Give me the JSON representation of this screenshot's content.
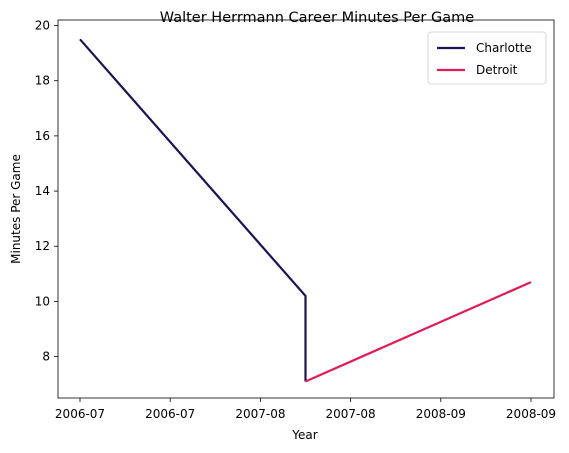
{
  "chart_data": {
    "type": "line",
    "title": "Walter Herrmann Career Minutes Per Game",
    "xlabel": "Year",
    "ylabel": "Minutes Per Game",
    "x_tick_labels": [
      "2006-07",
      "2006-07",
      "2007-08",
      "2007-08",
      "2008-09",
      "2008-09"
    ],
    "y_ticks": [
      8,
      10,
      12,
      14,
      16,
      18,
      20
    ],
    "xlim": [
      0,
      2
    ],
    "ylim": [
      6.5,
      20.2
    ],
    "grid": false,
    "legend_position": "top-right",
    "series": [
      {
        "name": "Charlotte",
        "color": "#1f1257",
        "points": [
          {
            "x": 0.0,
            "y": 19.5
          },
          {
            "x": 1.0,
            "y": 10.2
          },
          {
            "x": 1.0,
            "y": 7.1
          }
        ]
      },
      {
        "name": "Detroit",
        "color": "#e31a56",
        "points": [
          {
            "x": 1.0,
            "y": 7.1
          },
          {
            "x": 2.0,
            "y": 10.7
          }
        ]
      }
    ]
  }
}
